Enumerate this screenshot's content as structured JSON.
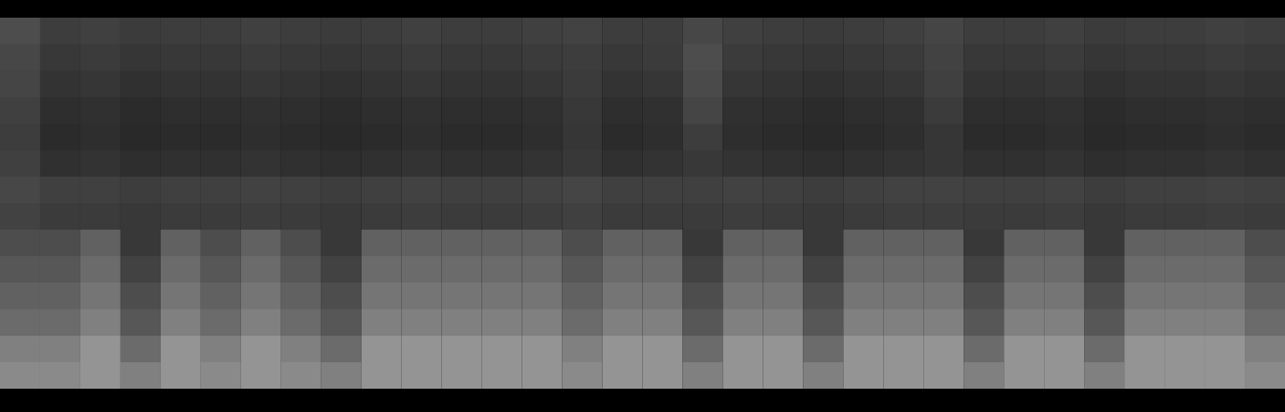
{
  "chart_data": {
    "type": "heatmap",
    "tick_labels": false,
    "zlim": [
      0,
      100
    ],
    "cells": [
      [
        30,
        24,
        25,
        23,
        24,
        24,
        25,
        24,
        23,
        24,
        25,
        24,
        24,
        25,
        26,
        24,
        24,
        28,
        25,
        24,
        23,
        24,
        25,
        27,
        24,
        24,
        25,
        23,
        24,
        24,
        25,
        24
      ],
      [
        28,
        22,
        23,
        21,
        22,
        22,
        23,
        22,
        21,
        22,
        23,
        22,
        22,
        23,
        24,
        22,
        23,
        30,
        23,
        22,
        21,
        22,
        23,
        26,
        22,
        22,
        23,
        21,
        22,
        22,
        23,
        22
      ],
      [
        27,
        20,
        21,
        19,
        20,
        20,
        21,
        20,
        19,
        20,
        21,
        20,
        20,
        21,
        23,
        20,
        21,
        29,
        21,
        20,
        19,
        20,
        21,
        25,
        20,
        20,
        21,
        19,
        20,
        20,
        21,
        20
      ],
      [
        25,
        18,
        19,
        17,
        18,
        18,
        19,
        18,
        17,
        18,
        19,
        18,
        18,
        19,
        22,
        18,
        19,
        27,
        19,
        18,
        17,
        18,
        19,
        23,
        18,
        18,
        19,
        17,
        18,
        18,
        19,
        18
      ],
      [
        24,
        17,
        18,
        16,
        17,
        17,
        18,
        17,
        16,
        17,
        18,
        17,
        17,
        18,
        21,
        17,
        18,
        24,
        18,
        17,
        16,
        17,
        18,
        21,
        17,
        17,
        18,
        16,
        17,
        17,
        18,
        17
      ],
      [
        25,
        19,
        20,
        18,
        19,
        19,
        20,
        19,
        18,
        19,
        20,
        19,
        19,
        20,
        22,
        19,
        20,
        22,
        20,
        19,
        18,
        19,
        20,
        21,
        19,
        19,
        20,
        18,
        19,
        19,
        20,
        19
      ],
      [
        28,
        25,
        25,
        24,
        25,
        25,
        26,
        25,
        24,
        25,
        26,
        25,
        25,
        26,
        27,
        25,
        25,
        25,
        26,
        25,
        24,
        25,
        26,
        26,
        25,
        25,
        26,
        24,
        25,
        25,
        26,
        25
      ],
      [
        26,
        23,
        23,
        22,
        23,
        23,
        24,
        23,
        22,
        23,
        24,
        23,
        23,
        24,
        25,
        23,
        23,
        23,
        24,
        23,
        22,
        23,
        24,
        24,
        23,
        23,
        24,
        22,
        23,
        23,
        24,
        23
      ],
      [
        30,
        30,
        38,
        22,
        38,
        30,
        38,
        30,
        22,
        38,
        38,
        38,
        38,
        38,
        30,
        38,
        38,
        22,
        38,
        38,
        22,
        38,
        38,
        38,
        22,
        38,
        38,
        22,
        38,
        38,
        38,
        30
      ],
      [
        34,
        34,
        42,
        26,
        42,
        34,
        42,
        34,
        26,
        42,
        42,
        42,
        42,
        42,
        34,
        42,
        42,
        26,
        42,
        42,
        26,
        42,
        42,
        42,
        26,
        42,
        42,
        26,
        42,
        42,
        42,
        34
      ],
      [
        38,
        38,
        46,
        30,
        46,
        38,
        46,
        38,
        30,
        46,
        46,
        46,
        46,
        46,
        38,
        46,
        46,
        30,
        46,
        46,
        30,
        46,
        46,
        46,
        30,
        46,
        46,
        30,
        46,
        46,
        46,
        38
      ],
      [
        42,
        42,
        50,
        34,
        50,
        42,
        50,
        42,
        34,
        50,
        50,
        50,
        50,
        50,
        42,
        50,
        50,
        34,
        50,
        50,
        34,
        50,
        50,
        50,
        34,
        50,
        50,
        34,
        50,
        50,
        50,
        42
      ],
      [
        50,
        50,
        58,
        42,
        58,
        50,
        58,
        50,
        42,
        58,
        58,
        58,
        58,
        58,
        50,
        58,
        58,
        42,
        58,
        58,
        42,
        58,
        58,
        58,
        42,
        58,
        58,
        42,
        58,
        58,
        58,
        50
      ],
      [
        54,
        54,
        58,
        50,
        58,
        54,
        58,
        54,
        50,
        58,
        58,
        58,
        58,
        58,
        54,
        58,
        58,
        50,
        58,
        58,
        50,
        58,
        58,
        58,
        50,
        58,
        58,
        50,
        58,
        58,
        58,
        54
      ]
    ]
  }
}
